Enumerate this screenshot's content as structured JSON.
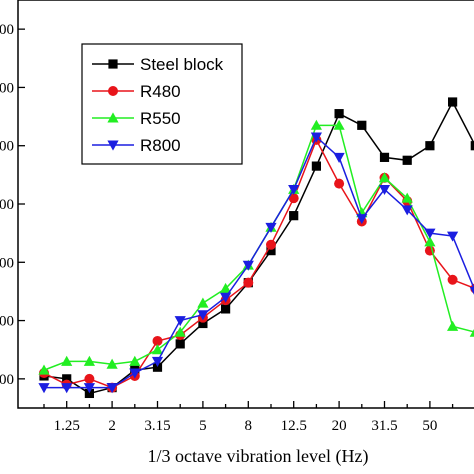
{
  "chart_data": {
    "type": "line",
    "xlabel": "1/3 octave vibration level (Hz)",
    "ylabel": "",
    "x": [
      "1",
      "1.25",
      "1.6",
      "2",
      "2.5",
      "3.15",
      "4",
      "5",
      "6.3",
      "8",
      "10",
      "12.5",
      "16",
      "20",
      "25",
      "31.5",
      "40",
      "50",
      "63",
      "80"
    ],
    "x_tick_labels": [
      "1.25",
      "2",
      "3.15",
      "5",
      "8",
      "12.5",
      "20",
      "31.5",
      "50"
    ],
    "y_tick_labels": [
      "00",
      "00",
      "00",
      "00",
      "00",
      "00",
      "00"
    ],
    "y_tick_values": [
      15,
      25,
      35,
      45,
      55,
      65,
      75
    ],
    "ylim": [
      10,
      80
    ],
    "grid": false,
    "legend_position": "top-left",
    "series": [
      {
        "name": "Steel block",
        "color": "#000000",
        "marker": "square",
        "values": [
          15.5,
          15.0,
          12.5,
          13.5,
          16.5,
          17.0,
          21.0,
          24.5,
          27.0,
          31.5,
          37.0,
          43.0,
          51.5,
          60.5,
          58.5,
          53.0,
          52.5,
          55.0,
          62.5,
          55.0
        ]
      },
      {
        "name": "R480",
        "color": "#e8141a",
        "marker": "circle",
        "values": [
          16.0,
          14.0,
          15.0,
          13.5,
          15.5,
          21.5,
          22.5,
          25.5,
          28.5,
          31.5,
          38.0,
          46.0,
          56.0,
          48.5,
          42.0,
          49.5,
          45.5,
          37.0,
          32.0,
          30.5
        ]
      },
      {
        "name": "R550",
        "color": "#22ee22",
        "marker": "triangle-up",
        "values": [
          16.5,
          18.0,
          18.0,
          17.5,
          18.0,
          20.0,
          23.0,
          28.0,
          30.5,
          34.5,
          41.0,
          47.5,
          58.5,
          58.5,
          43.5,
          49.5,
          46.0,
          38.5,
          24.0,
          23.0
        ]
      },
      {
        "name": "R800",
        "color": "#1b1ee0",
        "marker": "triangle-down",
        "values": [
          13.5,
          13.5,
          13.5,
          13.5,
          16.0,
          18.0,
          25.0,
          26.0,
          29.0,
          34.5,
          41.0,
          47.5,
          56.5,
          53.0,
          42.5,
          47.5,
          44.0,
          40.0,
          39.5,
          30.0
        ]
      }
    ]
  }
}
